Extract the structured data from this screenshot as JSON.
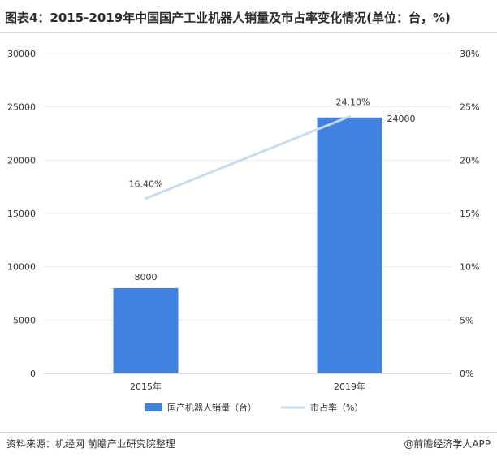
{
  "title": "图表4：2015-2019年中国国产工业机器人销量及市占率变化情况(单位：台，%)",
  "source": "资料来源：机经网 前瞻产业研究院整理",
  "credit": "@前瞻经济学人APP",
  "colors": {
    "bar": "#4182e0",
    "line": "#c6dcf2",
    "grid": "#ececec",
    "text": "#333333"
  },
  "chart_data": {
    "type": "bar",
    "categories": [
      "2015年",
      "2019年"
    ],
    "series": [
      {
        "name": "国产机器人销量（台）",
        "type": "bar",
        "axis": "left",
        "values": [
          8000,
          24000
        ],
        "labels": [
          "8000",
          "24000"
        ]
      },
      {
        "name": "市占率（%）",
        "type": "line",
        "axis": "right",
        "values": [
          16.4,
          24.1
        ],
        "labels": [
          "16.40%",
          "24.10%"
        ]
      }
    ],
    "y_left": {
      "range": [
        0,
        30000
      ],
      "ticks": [
        "0",
        "5000",
        "10000",
        "15000",
        "20000",
        "25000",
        "30000"
      ]
    },
    "y_right": {
      "range": [
        0,
        30
      ],
      "ticks": [
        "0%",
        "5%",
        "10%",
        "15%",
        "20%",
        "25%",
        "30%"
      ]
    },
    "grid": true,
    "legend_position": "bottom-center"
  }
}
